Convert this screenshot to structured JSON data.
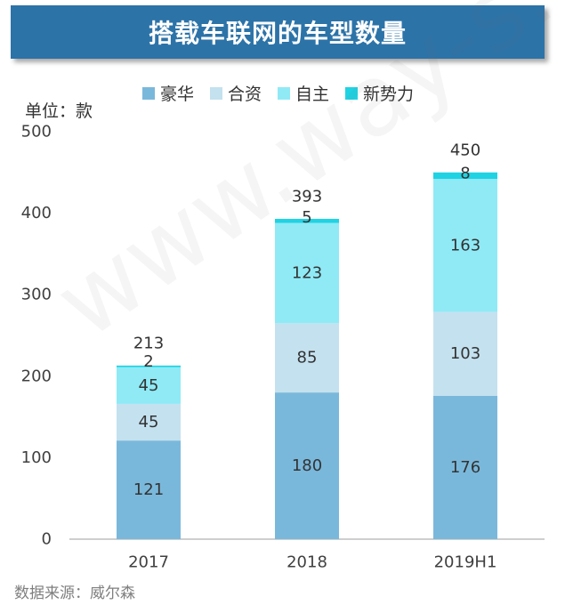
{
  "chart_data": {
    "type": "bar",
    "stacked": true,
    "title": "搭载车联网的车型数量",
    "ylabel": "单位：款",
    "ylim": [
      0,
      500
    ],
    "yticks": [
      "0",
      "100",
      "200",
      "300",
      "400",
      "500"
    ],
    "categories": [
      "2017",
      "2018",
      "2019H1"
    ],
    "series": [
      {
        "name": "豪华",
        "color": "#7ab8db",
        "values": [
          121,
          180,
          176
        ]
      },
      {
        "name": "合资",
        "color": "#c4e1ef",
        "values": [
          45,
          85,
          103
        ]
      },
      {
        "name": "自主",
        "color": "#8feaf6",
        "values": [
          45,
          123,
          163
        ]
      },
      {
        "name": "新势力",
        "color": "#1fd3e3",
        "values": [
          2,
          5,
          8
        ]
      }
    ],
    "totals": [
      213,
      393,
      450
    ],
    "grid": false,
    "legend_position": "top"
  },
  "source_text": "数据来源：威尔森",
  "watermark_text": "www.way-s.cn"
}
